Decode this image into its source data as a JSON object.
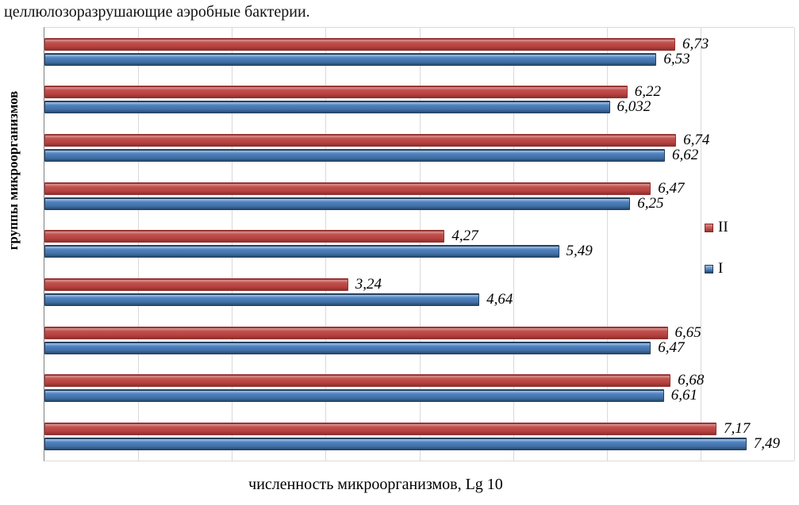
{
  "caption": "целлюлозоразрушающие аэробные бактерии.",
  "chart_data": {
    "type": "bar",
    "orientation": "horizontal",
    "title": "целлюлозоразрушающие аэробные бактерии.",
    "xlabel": "численность микроорганизмов, Lg 10",
    "ylabel": "группы микроорганизмов",
    "xlim": [
      0,
      8
    ],
    "grid": true,
    "legend_position": "right",
    "group_count": 9,
    "series": [
      {
        "name": "II",
        "color": "#C0504D",
        "values": [
          6.73,
          6.22,
          6.74,
          6.47,
          4.27,
          3.24,
          6.65,
          6.68,
          7.17
        ],
        "labels": [
          "6,73",
          "6,22",
          "6,74",
          "6,47",
          "4,27",
          "3,24",
          "6,65",
          "6,68",
          "7,17"
        ]
      },
      {
        "name": "I",
        "color": "#4F81BD",
        "values": [
          6.53,
          6.032,
          6.62,
          6.25,
          5.49,
          4.64,
          6.47,
          6.61,
          7.49
        ],
        "labels": [
          "6,53",
          "6,032",
          "6,62",
          "6,25",
          "5,49",
          "4,64",
          "6,47",
          "6,61",
          "7,49"
        ]
      }
    ],
    "gridline_color": "#d9d9d9",
    "axis_color": "#808080"
  }
}
